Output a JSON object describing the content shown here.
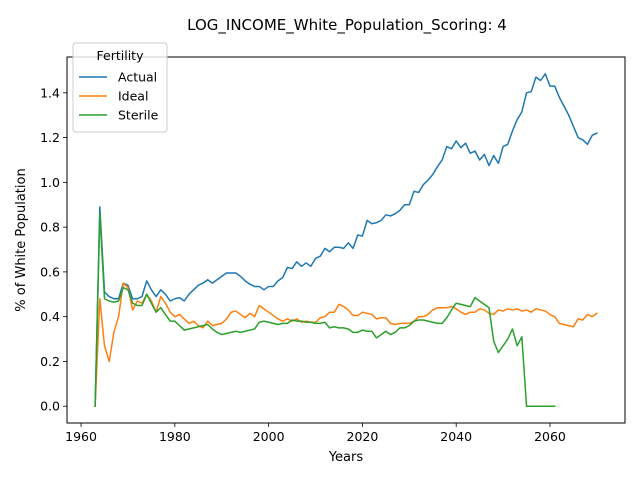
{
  "chart_data": {
    "type": "line",
    "title": "LOG_INCOME_White_Population_Scoring: 4",
    "xlabel": "Years",
    "ylabel": "% of White Population",
    "xlim": [
      1957,
      2076
    ],
    "ylim": [
      -0.075,
      1.56
    ],
    "x_ticks": [
      1960,
      1980,
      2000,
      2020,
      2040,
      2060
    ],
    "y_ticks": [
      0.0,
      0.2,
      0.4,
      0.6,
      0.8,
      1.0,
      1.2,
      1.4
    ],
    "y_tick_labels": [
      "0.0",
      "0.2",
      "0.4",
      "0.6",
      "0.8",
      "1.0",
      "1.2",
      "1.4"
    ],
    "grid": false,
    "legend": {
      "title": "Fertility",
      "placement": "top-left",
      "entries": [
        "Actual",
        "Ideal",
        "Sterile"
      ]
    },
    "series": [
      {
        "name": "Actual",
        "color": "#1f77b4",
        "x": [
          1963,
          1964,
          1965,
          1966,
          1967,
          1968,
          1969,
          1970,
          1971,
          1972,
          1973,
          1974,
          1975,
          1976,
          1977,
          1978,
          1979,
          1980,
          1981,
          1982,
          1983,
          1984,
          1985,
          1986,
          1987,
          1988,
          1989,
          1990,
          1991,
          1992,
          1993,
          1994,
          1995,
          1996,
          1997,
          1998,
          1999,
          2000,
          2001,
          2002,
          2003,
          2004,
          2005,
          2006,
          2007,
          2008,
          2009,
          2010,
          2011,
          2012,
          2013,
          2014,
          2015,
          2016,
          2017,
          2018,
          2019,
          2020,
          2021,
          2022,
          2023,
          2024,
          2025,
          2026,
          2027,
          2028,
          2029,
          2030,
          2031,
          2032,
          2033,
          2034,
          2035,
          2036,
          2037,
          2038,
          2039,
          2040,
          2041,
          2042,
          2043,
          2044,
          2045,
          2046,
          2047,
          2048,
          2049,
          2050,
          2051,
          2052,
          2053,
          2054,
          2055,
          2056,
          2057,
          2058,
          2059,
          2060,
          2061,
          2062,
          2063,
          2064,
          2065,
          2066,
          2067,
          2068,
          2069,
          2070
        ],
        "values": [
          0.0,
          0.89,
          0.51,
          0.49,
          0.48,
          0.48,
          0.55,
          0.54,
          0.48,
          0.48,
          0.49,
          0.56,
          0.52,
          0.49,
          0.52,
          0.5,
          0.47,
          0.48,
          0.485,
          0.47,
          0.5,
          0.52,
          0.54,
          0.55,
          0.565,
          0.55,
          0.565,
          0.58,
          0.595,
          0.595,
          0.595,
          0.58,
          0.56,
          0.545,
          0.535,
          0.535,
          0.52,
          0.535,
          0.535,
          0.56,
          0.575,
          0.62,
          0.615,
          0.645,
          0.625,
          0.64,
          0.625,
          0.66,
          0.67,
          0.705,
          0.69,
          0.71,
          0.71,
          0.705,
          0.73,
          0.705,
          0.765,
          0.76,
          0.83,
          0.815,
          0.82,
          0.83,
          0.855,
          0.85,
          0.86,
          0.875,
          0.9,
          0.9,
          0.96,
          0.955,
          0.99,
          1.01,
          1.035,
          1.07,
          1.1,
          1.16,
          1.15,
          1.185,
          1.155,
          1.175,
          1.13,
          1.14,
          1.1,
          1.125,
          1.075,
          1.12,
          1.085,
          1.16,
          1.17,
          1.23,
          1.28,
          1.315,
          1.4,
          1.405,
          1.47,
          1.455,
          1.485,
          1.43,
          1.43,
          1.38,
          1.34,
          1.3,
          1.25,
          1.2,
          1.19,
          1.17,
          1.21,
          1.22
        ]
      },
      {
        "name": "Ideal",
        "color": "#ff7f0e",
        "x": [
          1963,
          1964,
          1965,
          1966,
          1967,
          1968,
          1969,
          1970,
          1971,
          1972,
          1973,
          1974,
          1975,
          1976,
          1977,
          1978,
          1979,
          1980,
          1981,
          1982,
          1983,
          1984,
          1985,
          1986,
          1987,
          1988,
          1989,
          1990,
          1991,
          1992,
          1993,
          1994,
          1995,
          1996,
          1997,
          1998,
          1999,
          2000,
          2001,
          2002,
          2003,
          2004,
          2005,
          2006,
          2007,
          2008,
          2009,
          2010,
          2011,
          2012,
          2013,
          2014,
          2015,
          2016,
          2017,
          2018,
          2019,
          2020,
          2021,
          2022,
          2023,
          2024,
          2025,
          2026,
          2027,
          2028,
          2029,
          2030,
          2031,
          2032,
          2033,
          2034,
          2035,
          2036,
          2037,
          2038,
          2039,
          2040,
          2041,
          2042,
          2043,
          2044,
          2045,
          2046,
          2047,
          2048,
          2049,
          2050,
          2051,
          2052,
          2053,
          2054,
          2055,
          2056,
          2057,
          2058,
          2059,
          2060,
          2061,
          2062,
          2063,
          2064,
          2065,
          2066,
          2067,
          2068,
          2069,
          2070
        ],
        "values": [
          0.0,
          0.48,
          0.27,
          0.2,
          0.33,
          0.4,
          0.55,
          0.53,
          0.43,
          0.47,
          0.46,
          0.5,
          0.47,
          0.42,
          0.49,
          0.46,
          0.42,
          0.4,
          0.41,
          0.39,
          0.37,
          0.38,
          0.36,
          0.35,
          0.38,
          0.36,
          0.365,
          0.37,
          0.39,
          0.42,
          0.425,
          0.41,
          0.395,
          0.415,
          0.4,
          0.45,
          0.435,
          0.42,
          0.405,
          0.39,
          0.38,
          0.39,
          0.38,
          0.39,
          0.375,
          0.38,
          0.375,
          0.375,
          0.395,
          0.4,
          0.42,
          0.42,
          0.455,
          0.445,
          0.43,
          0.405,
          0.405,
          0.42,
          0.415,
          0.41,
          0.39,
          0.395,
          0.395,
          0.37,
          0.365,
          0.37,
          0.37,
          0.37,
          0.38,
          0.4,
          0.4,
          0.41,
          0.43,
          0.44,
          0.44,
          0.44,
          0.445,
          0.435,
          0.42,
          0.41,
          0.42,
          0.42,
          0.435,
          0.43,
          0.415,
          0.41,
          0.43,
          0.425,
          0.435,
          0.43,
          0.435,
          0.425,
          0.43,
          0.42,
          0.435,
          0.43,
          0.425,
          0.41,
          0.4,
          0.37,
          0.365,
          0.36,
          0.355,
          0.39,
          0.385,
          0.41,
          0.4,
          0.415
        ]
      },
      {
        "name": "Sterile",
        "color": "#2ca02c",
        "x": [
          1963,
          1964,
          1965,
          1966,
          1967,
          1968,
          1969,
          1970,
          1971,
          1972,
          1973,
          1974,
          1975,
          1976,
          1977,
          1978,
          1979,
          1980,
          1981,
          1982,
          1983,
          1984,
          1985,
          1986,
          1987,
          1988,
          1989,
          1990,
          1991,
          1992,
          1993,
          1994,
          1995,
          1996,
          1997,
          1998,
          1999,
          2000,
          2001,
          2002,
          2003,
          2004,
          2005,
          2006,
          2007,
          2008,
          2009,
          2010,
          2011,
          2012,
          2013,
          2014,
          2015,
          2016,
          2017,
          2018,
          2019,
          2020,
          2021,
          2022,
          2023,
          2024,
          2025,
          2026,
          2027,
          2028,
          2029,
          2030,
          2031,
          2032,
          2033,
          2034,
          2035,
          2036,
          2037,
          2038,
          2039,
          2040,
          2041,
          2042,
          2043,
          2044,
          2045,
          2046,
          2047,
          2048,
          2049,
          2050,
          2051,
          2052,
          2053,
          2054,
          2055,
          2056,
          2057,
          2058,
          2059,
          2060,
          2061
        ],
        "values": [
          0.0,
          0.86,
          0.48,
          0.47,
          0.465,
          0.47,
          0.53,
          0.52,
          0.46,
          0.45,
          0.45,
          0.5,
          0.46,
          0.42,
          0.44,
          0.41,
          0.38,
          0.38,
          0.36,
          0.34,
          0.345,
          0.35,
          0.355,
          0.36,
          0.365,
          0.345,
          0.33,
          0.32,
          0.325,
          0.33,
          0.335,
          0.33,
          0.335,
          0.34,
          0.345,
          0.375,
          0.38,
          0.375,
          0.37,
          0.365,
          0.37,
          0.37,
          0.385,
          0.38,
          0.38,
          0.375,
          0.375,
          0.37,
          0.37,
          0.375,
          0.35,
          0.355,
          0.35,
          0.35,
          0.345,
          0.33,
          0.33,
          0.34,
          0.335,
          0.335,
          0.305,
          0.32,
          0.335,
          0.32,
          0.33,
          0.35,
          0.35,
          0.36,
          0.38,
          0.385,
          0.385,
          0.38,
          0.375,
          0.37,
          0.37,
          0.395,
          0.43,
          0.46,
          0.455,
          0.45,
          0.445,
          0.485,
          0.47,
          0.455,
          0.44,
          0.29,
          0.24,
          0.27,
          0.3,
          0.345,
          0.27,
          0.31,
          0.0,
          0.0,
          0.0,
          0.0,
          0.0,
          0.0,
          0.0
        ]
      }
    ]
  }
}
